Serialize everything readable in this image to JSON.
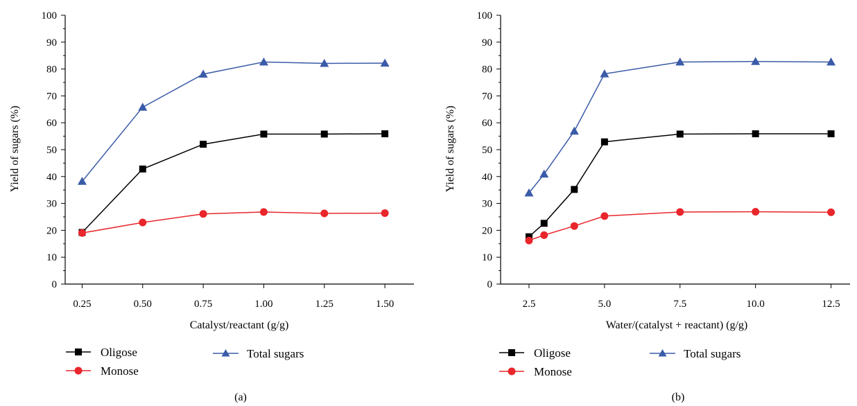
{
  "chart_data": [
    {
      "type": "line",
      "panel_label": "(a)",
      "xlabel": "Catalyst/reactant (g/g)",
      "ylabel": "Yield of sugars (%)",
      "x": [
        0.25,
        0.5,
        0.75,
        1.0,
        1.25,
        1.5
      ],
      "x_tick_labels": [
        "0.25",
        "0.50",
        "0.75",
        "1.00",
        "1.25",
        "1.50"
      ],
      "xlim": [
        0.18,
        1.62
      ],
      "ylim": [
        0,
        100
      ],
      "y_ticks": [
        0,
        10,
        20,
        30,
        40,
        50,
        60,
        70,
        80,
        90,
        100
      ],
      "grid": false,
      "legend_position": "bottom",
      "series": [
        {
          "name": "Oligose",
          "color": "#000000",
          "marker": "square",
          "values": [
            19.2,
            42.8,
            52.0,
            55.8,
            55.8,
            55.9
          ]
        },
        {
          "name": "Monose",
          "color": "#e8262b",
          "marker": "circle",
          "values": [
            19.0,
            22.9,
            26.1,
            26.8,
            26.3,
            26.4
          ]
        },
        {
          "name": "Total sugars",
          "color": "#3a5ba8",
          "marker": "triangle",
          "values": [
            38.2,
            65.8,
            78.1,
            82.6,
            82.1,
            82.2
          ]
        }
      ]
    },
    {
      "type": "line",
      "panel_label": "(b)",
      "xlabel": "Water/(catalyst + reactant) (g/g)",
      "ylabel": "Yield of sugars (%)",
      "x": [
        2.5,
        3.0,
        4.0,
        5.0,
        7.5,
        10.0,
        12.5
      ],
      "x_ticks": [
        2.5,
        5.0,
        7.5,
        10.0,
        12.5
      ],
      "x_tick_labels": [
        "2.5",
        "5.0",
        "7.5",
        "10.0",
        "12.5"
      ],
      "xlim": [
        1.56,
        13.13
      ],
      "ylim": [
        0,
        100
      ],
      "y_ticks": [
        0,
        10,
        20,
        30,
        40,
        50,
        60,
        70,
        80,
        90,
        100
      ],
      "grid": false,
      "legend_position": "bottom",
      "series": [
        {
          "name": "Oligose",
          "color": "#000000",
          "marker": "square",
          "values": [
            17.6,
            22.6,
            35.2,
            52.9,
            55.8,
            55.9,
            55.9
          ]
        },
        {
          "name": "Monose",
          "color": "#e8262b",
          "marker": "circle",
          "values": [
            16.2,
            18.2,
            21.6,
            25.3,
            26.8,
            26.9,
            26.7
          ]
        },
        {
          "name": "Total sugars",
          "color": "#3a5ba8",
          "marker": "triangle",
          "values": [
            33.9,
            40.9,
            56.9,
            78.2,
            82.6,
            82.8,
            82.6
          ]
        }
      ]
    }
  ]
}
